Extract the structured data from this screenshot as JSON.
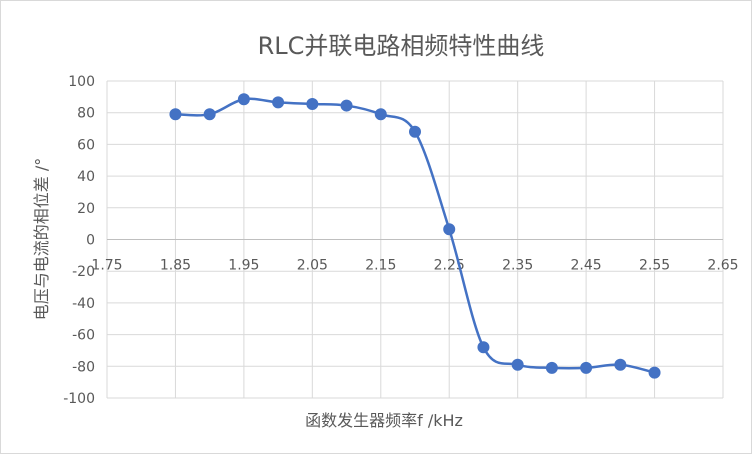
{
  "chart_data": {
    "type": "line",
    "title": "RLC并联电路相频特性曲线",
    "xlabel": "函数发生器频率f /kHz",
    "ylabel": "电压与电流的相位差 /°",
    "xlim": [
      1.75,
      2.65
    ],
    "ylim": [
      -100,
      100
    ],
    "x_ticks": [
      "1.75",
      "1.85",
      "1.95",
      "2.05",
      "2.15",
      "2.25",
      "2.35",
      "2.45",
      "2.55",
      "2.65"
    ],
    "y_ticks": [
      "100",
      "80",
      "60",
      "40",
      "20",
      "0",
      "-20",
      "-40",
      "-60",
      "-80",
      "-100"
    ],
    "grid": true,
    "smooth": true,
    "series": [
      {
        "color": "#4472c4",
        "x": [
          1.85,
          1.9,
          1.95,
          2.0,
          2.05,
          2.1,
          2.15,
          2.2,
          2.25,
          2.3,
          2.35,
          2.4,
          2.45,
          2.5,
          2.55
        ],
        "y": [
          79,
          79,
          88.5,
          86.5,
          85.5,
          84.5,
          79,
          68,
          6.5,
          -68,
          -79,
          -81,
          -81,
          -79,
          -84
        ]
      }
    ]
  }
}
